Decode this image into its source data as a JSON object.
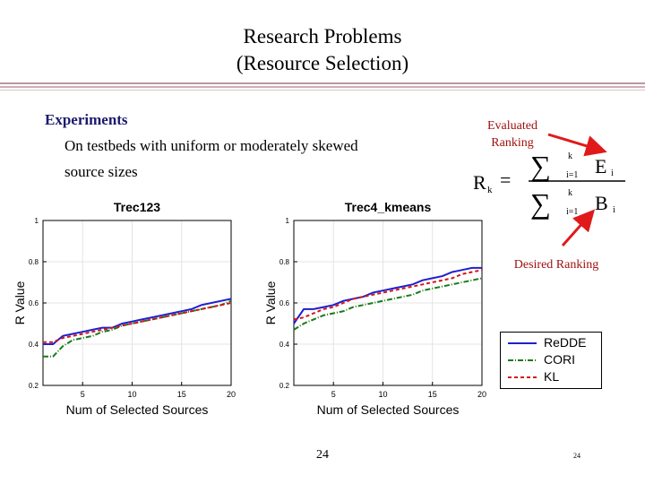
{
  "slide": {
    "title_line1": "Research Problems",
    "title_line2": "(Resource Selection)",
    "bullet": "Experiments",
    "sub_line1": "On testbeds with uniform or moderately skewed",
    "sub_line2": "source sizes",
    "page_number": "24",
    "page_number_small": "24"
  },
  "formula": {
    "lhs": "R",
    "lhs_sub": "k",
    "equals": "=",
    "num_var": "E",
    "num_sub": "i",
    "den_var": "B",
    "den_sub": "i",
    "sum_upper": "k",
    "sum_lower_num": "i=1",
    "sum_lower_den": "i=1",
    "evaluated_label": "Evaluated Ranking",
    "desired_label": "Desired Ranking"
  },
  "legend": {
    "entries": [
      "ReDDE",
      "CORI",
      "KL"
    ]
  },
  "colors": {
    "redde": "#1f1fcf",
    "cori": "#1a7a1a",
    "kl": "#d41515",
    "accent": "#a01010",
    "arrow": "#e01a1a",
    "stripe": "#c8a8b0"
  },
  "chart_data": [
    {
      "type": "line",
      "title": "Trec123",
      "xlabel": "Num of Selected Sources",
      "ylabel": "R Value",
      "xlim": [
        1,
        20
      ],
      "ylim": [
        0.2,
        1
      ],
      "xticks": [
        5,
        10,
        15,
        20
      ],
      "yticks": [
        0.2,
        0.4,
        0.6,
        0.8,
        1
      ],
      "x": [
        1,
        2,
        3,
        4,
        5,
        6,
        7,
        8,
        9,
        10,
        11,
        12,
        13,
        14,
        15,
        16,
        17,
        18,
        19,
        20
      ],
      "series": [
        {
          "name": "ReDDE",
          "values": [
            0.4,
            0.4,
            0.44,
            0.45,
            0.46,
            0.47,
            0.48,
            0.48,
            0.5,
            0.51,
            0.52,
            0.53,
            0.54,
            0.55,
            0.56,
            0.57,
            0.59,
            0.6,
            0.61,
            0.62
          ]
        },
        {
          "name": "CORI",
          "values": [
            0.34,
            0.34,
            0.39,
            0.42,
            0.43,
            0.44,
            0.46,
            0.47,
            0.49,
            0.5,
            0.51,
            0.52,
            0.53,
            0.54,
            0.55,
            0.56,
            0.57,
            0.58,
            0.59,
            0.61
          ]
        },
        {
          "name": "KL",
          "values": [
            0.41,
            0.41,
            0.43,
            0.44,
            0.45,
            0.46,
            0.47,
            0.48,
            0.49,
            0.5,
            0.51,
            0.52,
            0.53,
            0.54,
            0.55,
            0.56,
            0.57,
            0.58,
            0.59,
            0.6
          ]
        }
      ]
    },
    {
      "type": "line",
      "title": "Trec4_kmeans",
      "xlabel": "Num of Selected Sources",
      "ylabel": "R Value",
      "xlim": [
        1,
        20
      ],
      "ylim": [
        0.2,
        1
      ],
      "xticks": [
        5,
        10,
        15,
        20
      ],
      "yticks": [
        0.2,
        0.4,
        0.6,
        0.8,
        1
      ],
      "x": [
        1,
        2,
        3,
        4,
        5,
        6,
        7,
        8,
        9,
        10,
        11,
        12,
        13,
        14,
        15,
        16,
        17,
        18,
        19,
        20
      ],
      "series": [
        {
          "name": "ReDDE",
          "values": [
            0.5,
            0.57,
            0.57,
            0.58,
            0.59,
            0.61,
            0.62,
            0.63,
            0.65,
            0.66,
            0.67,
            0.68,
            0.69,
            0.71,
            0.72,
            0.73,
            0.75,
            0.76,
            0.77,
            0.77
          ]
        },
        {
          "name": "CORI",
          "values": [
            0.47,
            0.5,
            0.52,
            0.54,
            0.55,
            0.56,
            0.58,
            0.59,
            0.6,
            0.61,
            0.62,
            0.63,
            0.64,
            0.66,
            0.67,
            0.68,
            0.69,
            0.7,
            0.71,
            0.72
          ]
        },
        {
          "name": "KL",
          "values": [
            0.52,
            0.53,
            0.55,
            0.57,
            0.58,
            0.6,
            0.62,
            0.63,
            0.64,
            0.65,
            0.66,
            0.67,
            0.68,
            0.69,
            0.7,
            0.71,
            0.72,
            0.74,
            0.75,
            0.76
          ]
        }
      ]
    }
  ]
}
